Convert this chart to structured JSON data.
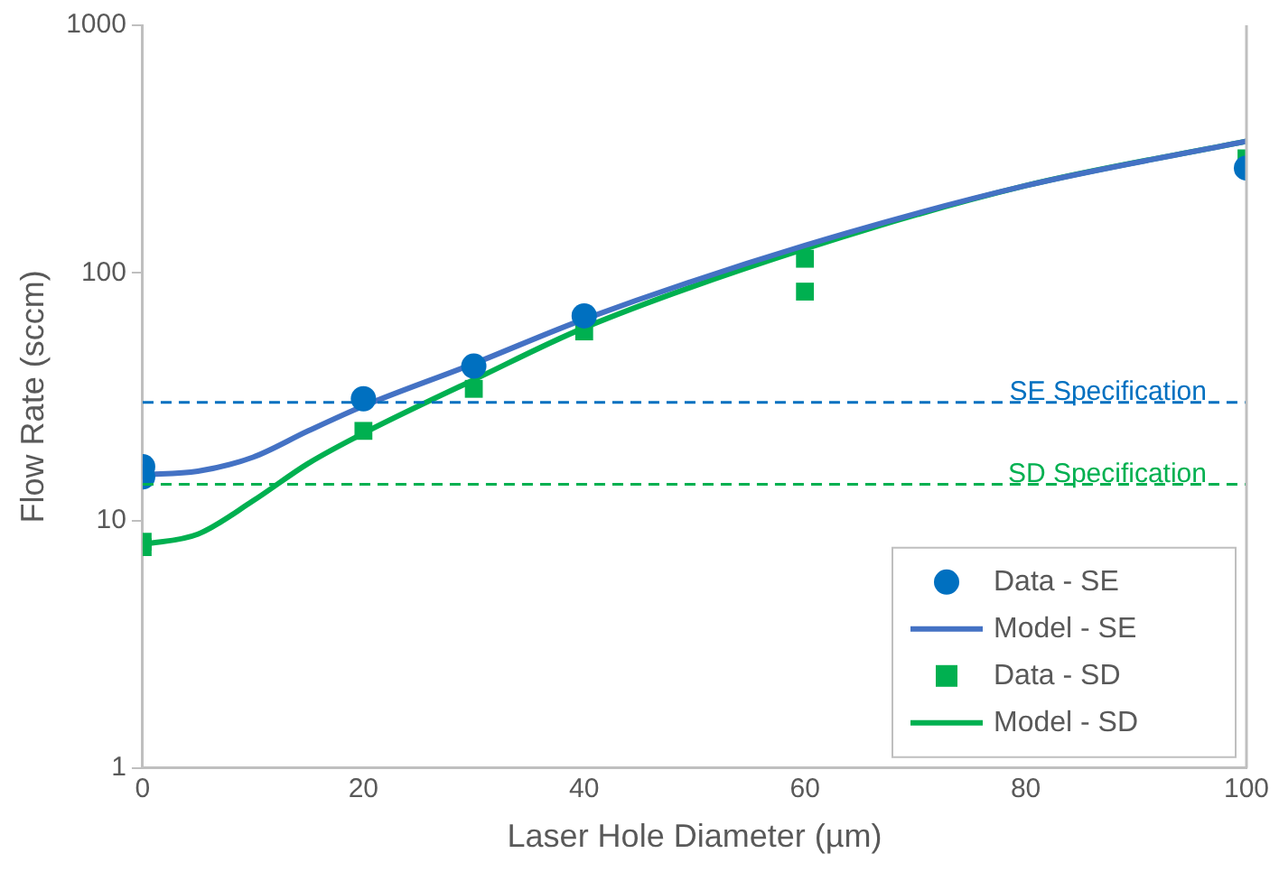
{
  "chart_data": {
    "type": "scatter",
    "xlabel": "Laser Hole Diameter (µm)",
    "ylabel": "Flow Rate (sccm)",
    "xlim": [
      0,
      100
    ],
    "xticks": [
      0,
      20,
      40,
      60,
      80,
      100
    ],
    "ylim": [
      1,
      1000
    ],
    "yticks": [
      1,
      10,
      100,
      1000
    ],
    "log": "y",
    "grid": false,
    "legend": "bottom right",
    "series": [
      {
        "name": "Data - SE",
        "marker": "circle",
        "color": "#0070c0",
        "x": [
          0,
          0,
          20,
          30,
          40,
          100
        ],
        "values": [
          15,
          16.5,
          31,
          42,
          67,
          265
        ]
      },
      {
        "name": "Model - SE",
        "type": "line",
        "marker": "none",
        "line_style": "solid",
        "color": "#4472c4",
        "x": [
          0,
          5,
          10,
          15,
          20,
          30,
          40,
          60,
          80,
          100
        ],
        "values": [
          15.3,
          15.8,
          18,
          23,
          29,
          43,
          65,
          129,
          225,
          340
        ]
      },
      {
        "name": "Data - SD",
        "marker": "square",
        "color": "#00b050",
        "x": [
          0,
          0,
          20,
          30,
          40,
          60,
          60,
          100
        ],
        "values": [
          7.8,
          8.2,
          23,
          34,
          58,
          114,
          84,
          290
        ]
      },
      {
        "name": "Model - SD",
        "type": "line",
        "marker": "none",
        "line_style": "solid",
        "color": "#00b050",
        "x": [
          0,
          5,
          10,
          15,
          20,
          30,
          40,
          60,
          80,
          100
        ],
        "values": [
          8,
          8.8,
          12,
          17,
          22.5,
          37,
          60,
          125,
          225,
          340
        ]
      }
    ],
    "ref_lines": [
      {
        "axis": "y",
        "value": 30,
        "label": "SE Specification",
        "color": "#0070c0",
        "line_style": "dashed"
      },
      {
        "axis": "y",
        "value": 14,
        "label": "SD Specification",
        "color": "#00b050",
        "line_style": "dashed"
      }
    ]
  }
}
